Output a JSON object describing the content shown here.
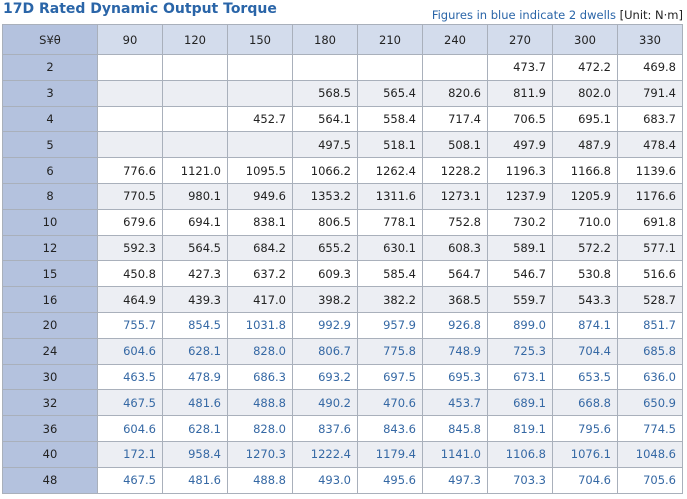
{
  "header": {
    "title": "17D Rated Dynamic Output Torque",
    "note": "Figures in blue indicate 2 dwells",
    "unit": "[Unit: N·m]"
  },
  "table": {
    "columns": [
      "S¥θ",
      "90",
      "120",
      "150",
      "180",
      "210",
      "240",
      "270",
      "300",
      "330"
    ],
    "rows": [
      [
        "2",
        null,
        null,
        null,
        null,
        null,
        null,
        "473.7",
        "472.2",
        "469.8"
      ],
      [
        "3",
        null,
        null,
        null,
        "568.5",
        "565.4",
        "820.6",
        "811.9",
        "802.0",
        "791.4"
      ],
      [
        "4",
        null,
        null,
        "452.7",
        "564.1",
        "558.4",
        "717.4",
        "706.5",
        "695.1",
        "683.7"
      ],
      [
        "5",
        null,
        null,
        null,
        "497.5",
        "518.1",
        "508.1",
        "497.9",
        "487.9",
        "478.4"
      ],
      [
        "6",
        "776.6",
        "1121.0",
        "1095.5",
        "1066.2",
        "1262.4",
        "1228.2",
        "1196.3",
        "1166.8",
        "1139.6"
      ],
      [
        "8",
        "770.5",
        "980.1",
        "949.6",
        "1353.2",
        "1311.6",
        "1273.1",
        "1237.9",
        "1205.9",
        "1176.6"
      ],
      [
        "10",
        "679.6",
        "694.1",
        "838.1",
        "806.5",
        "778.1",
        "752.8",
        "730.2",
        "710.0",
        "691.8"
      ],
      [
        "12",
        "592.3",
        "564.5",
        "684.2",
        "655.2",
        "630.1",
        "608.3",
        "589.1",
        "572.2",
        "577.1"
      ],
      [
        "15",
        "450.8",
        "427.3",
        "637.2",
        "609.3",
        "585.4",
        "564.7",
        "546.7",
        "530.8",
        "516.6"
      ],
      [
        "16",
        "464.9",
        "439.3",
        "417.0",
        "398.2",
        "382.2",
        "368.5",
        "559.7",
        "543.3",
        "528.7"
      ],
      [
        "20",
        "755.7",
        "854.5",
        "1031.8",
        "992.9",
        "957.9",
        "926.8",
        "899.0",
        "874.1",
        "851.7"
      ],
      [
        "24",
        "604.6",
        "628.1",
        "828.0",
        "806.7",
        "775.8",
        "748.9",
        "725.3",
        "704.4",
        "685.8"
      ],
      [
        "30",
        "463.5",
        "478.9",
        "686.3",
        "693.2",
        "697.5",
        "695.3",
        "673.1",
        "653.5",
        "636.0"
      ],
      [
        "32",
        "467.5",
        "481.6",
        "488.8",
        "490.2",
        "470.6",
        "453.7",
        "689.1",
        "668.8",
        "650.9"
      ],
      [
        "36",
        "604.6",
        "628.1",
        "828.0",
        "837.6",
        "843.6",
        "845.8",
        "819.1",
        "795.6",
        "774.5"
      ],
      [
        "40",
        "172.1",
        "958.4",
        "1270.3",
        "1222.4",
        "1179.4",
        "1141.0",
        "1106.8",
        "1076.1",
        "1048.6"
      ],
      [
        "48",
        "467.5",
        "481.6",
        "488.8",
        "493.0",
        "495.6",
        "497.3",
        "703.3",
        "704.6",
        "705.6"
      ]
    ]
  }
}
